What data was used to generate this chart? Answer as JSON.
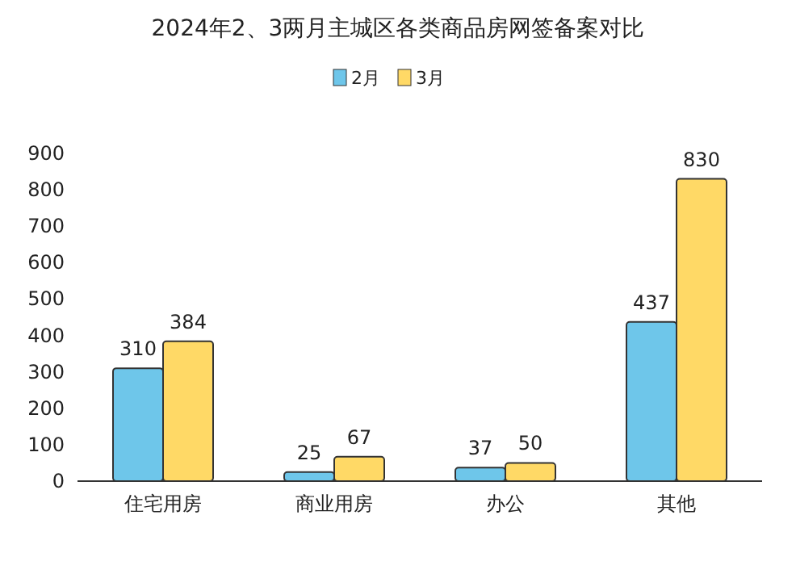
{
  "chart_data": {
    "type": "bar",
    "title": "2024年2、3两月主城区各类商品房网签备案对比",
    "categories": [
      "住宅用房",
      "商业用房",
      "办公",
      "其他"
    ],
    "series": [
      {
        "name": "2月",
        "color": "#6ec6ea",
        "values": [
          310,
          25,
          37,
          437
        ]
      },
      {
        "name": "3月",
        "color": "#ffd966",
        "values": [
          384,
          67,
          50,
          830
        ]
      }
    ],
    "ylim": [
      0,
      900
    ],
    "yticks": [
      0,
      100,
      200,
      300,
      400,
      500,
      600,
      700,
      800,
      900
    ],
    "grid": false,
    "legend": "top",
    "data_labels": true
  }
}
